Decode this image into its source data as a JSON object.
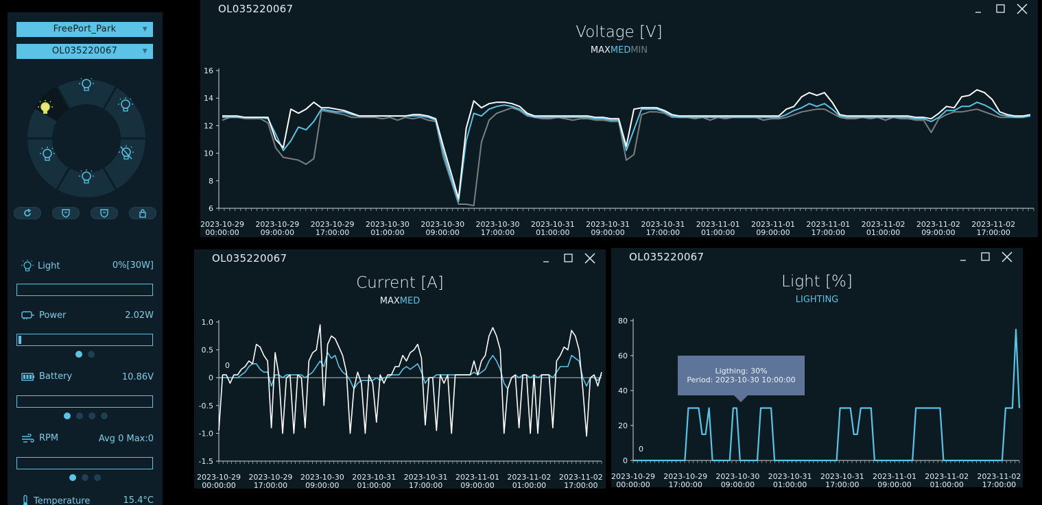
{
  "sidebar": {
    "site_select": "FreePort_Park",
    "device_select": "OL035220067",
    "metrics": {
      "light": {
        "label": "Light",
        "value": "0%[30W]",
        "level": 0
      },
      "power": {
        "label": "Power",
        "value": "2.02W",
        "level": 0.02
      },
      "battery": {
        "label": "Battery",
        "value": "10.86V",
        "level": 0
      },
      "rpm": {
        "label": "RPM",
        "value": "Avg 0 Max:0",
        "level": 0
      },
      "temperature": {
        "label": "Temperature",
        "value": "15.4°C"
      }
    },
    "pagers": {
      "power": [
        true,
        false
      ],
      "battery": [
        true,
        false,
        false,
        false
      ],
      "rpm": [
        true,
        false,
        false
      ]
    }
  },
  "panels": {
    "voltage": {
      "device": "OL035220067",
      "title": "Voltage [V]",
      "legend": {
        "max": "MAX",
        "med": "MED",
        "min": "MIN"
      }
    },
    "current": {
      "device": "OL035220067",
      "title": "Current [A]",
      "legend": {
        "max": "MAX",
        "med": "MED"
      }
    },
    "light": {
      "device": "OL035220067",
      "title": "Light [%]",
      "legend": {
        "lighting": "LIGHTING"
      },
      "tooltip": {
        "line1": "Ligthing: 30%",
        "line2": "Period: 2023-10-30 10:00:00"
      }
    }
  },
  "colors": {
    "max": "#ffffff",
    "med": "#5bc3e6",
    "min": "#7a7f82",
    "accent": "#5bc3e6"
  },
  "chart_data": [
    {
      "type": "line",
      "title": "Voltage [V]",
      "ylim": [
        6,
        16
      ],
      "yticks": [
        6,
        8,
        10,
        12,
        14,
        16
      ],
      "xticks": [
        [
          "2023-10-29",
          "00:00:00"
        ],
        [
          "2023-10-29",
          "09:00:00"
        ],
        [
          "2023-10-29",
          "17:00:00"
        ],
        [
          "2023-10-30",
          "01:00:00"
        ],
        [
          "2023-10-30",
          "09:00:00"
        ],
        [
          "2023-10-30",
          "17:00:00"
        ],
        [
          "2023-10-31",
          "01:00:00"
        ],
        [
          "2023-10-31",
          "09:00:00"
        ],
        [
          "2023-10-31",
          "17:00:00"
        ],
        [
          "2023-11-01",
          "01:00:00"
        ],
        [
          "2023-11-01",
          "09:00:00"
        ],
        [
          "2023-11-01",
          "17:00:00"
        ],
        [
          "2023-11-02",
          "01:00:00"
        ],
        [
          "2023-11-02",
          "09:00:00"
        ],
        [
          "2023-11-02",
          "17:00:00"
        ]
      ],
      "series": [
        {
          "name": "MAX",
          "values": [
            12.7,
            12.7,
            12.7,
            12.6,
            12.6,
            12.6,
            12.6,
            11.0,
            10.4,
            13.2,
            12.9,
            13.2,
            13.7,
            13.3,
            13.3,
            13.2,
            13.1,
            12.9,
            12.7,
            12.7,
            12.7,
            12.7,
            12.7,
            12.7,
            12.7,
            12.8,
            12.8,
            12.7,
            12.5,
            10.5,
            8.6,
            6.7,
            11.8,
            13.8,
            13.3,
            13.6,
            13.7,
            13.7,
            13.6,
            13.4,
            12.9,
            12.7,
            12.7,
            12.7,
            12.7,
            12.7,
            12.7,
            12.7,
            12.7,
            12.6,
            12.6,
            12.5,
            12.5,
            10.5,
            13.2,
            13.3,
            13.3,
            13.3,
            13.1,
            12.8,
            12.7,
            12.7,
            12.7,
            12.7,
            12.7,
            12.7,
            12.7,
            12.7,
            12.7,
            12.7,
            12.7,
            12.7,
            12.7,
            12.7,
            13.2,
            13.4,
            14.1,
            14.4,
            14.2,
            14.4,
            13.7,
            12.8,
            12.7,
            12.7,
            12.7,
            12.7,
            12.7,
            12.7,
            12.7,
            12.7,
            12.7,
            12.6,
            12.6,
            12.5,
            12.9,
            13.4,
            13.3,
            14.1,
            14.2,
            14.6,
            14.4,
            13.9,
            13.0,
            12.8,
            12.7,
            12.7,
            12.8
          ]
        },
        {
          "name": "MED",
          "values": [
            12.6,
            12.6,
            12.6,
            12.6,
            12.6,
            12.6,
            12.5,
            11.4,
            10.2,
            10.9,
            11.9,
            11.7,
            12.3,
            13.2,
            13.1,
            13.0,
            13.0,
            12.8,
            12.7,
            12.7,
            12.7,
            12.7,
            12.7,
            12.7,
            12.7,
            12.7,
            12.7,
            12.6,
            12.4,
            10.1,
            8.2,
            6.5,
            10.9,
            12.9,
            12.7,
            13.2,
            13.4,
            13.5,
            13.4,
            13.2,
            12.8,
            12.6,
            12.6,
            12.6,
            12.6,
            12.6,
            12.6,
            12.6,
            12.6,
            12.5,
            12.5,
            12.4,
            12.4,
            10.2,
            11.7,
            13.2,
            13.2,
            13.2,
            13.0,
            12.7,
            12.6,
            12.6,
            12.6,
            12.6,
            12.6,
            12.6,
            12.6,
            12.6,
            12.6,
            12.6,
            12.6,
            12.6,
            12.6,
            12.6,
            12.8,
            13.1,
            13.3,
            13.6,
            13.4,
            13.6,
            13.2,
            12.7,
            12.6,
            12.6,
            12.6,
            12.6,
            12.6,
            12.6,
            12.6,
            12.6,
            12.6,
            12.5,
            12.5,
            12.3,
            12.6,
            13.1,
            13.1,
            13.4,
            13.4,
            13.7,
            13.5,
            13.2,
            12.8,
            12.7,
            12.6,
            12.6,
            12.7
          ]
        },
        {
          "name": "MIN",
          "values": [
            12.4,
            12.6,
            12.6,
            12.5,
            12.5,
            12.5,
            12.2,
            10.4,
            9.7,
            9.6,
            9.5,
            9.2,
            9.6,
            13.1,
            13.0,
            12.9,
            12.8,
            12.6,
            12.6,
            12.6,
            12.6,
            12.5,
            12.6,
            12.4,
            12.6,
            12.5,
            12.6,
            12.4,
            12.3,
            9.7,
            8.0,
            6.3,
            6.3,
            6.2,
            10.8,
            12.4,
            12.9,
            13.1,
            13.3,
            13.1,
            12.7,
            12.6,
            12.5,
            12.5,
            12.6,
            12.5,
            12.4,
            12.5,
            12.5,
            12.4,
            12.4,
            12.3,
            12.3,
            9.5,
            9.9,
            12.8,
            13.0,
            13.0,
            12.9,
            12.6,
            12.6,
            12.6,
            12.5,
            12.6,
            12.4,
            12.6,
            12.5,
            12.6,
            12.6,
            12.6,
            12.6,
            12.4,
            12.5,
            12.5,
            12.6,
            12.8,
            13.0,
            13.1,
            13.2,
            13.2,
            12.9,
            12.6,
            12.5,
            12.5,
            12.6,
            12.5,
            12.6,
            12.4,
            12.6,
            12.5,
            12.5,
            12.4,
            12.4,
            11.5,
            12.5,
            12.8,
            13.0,
            13.0,
            13.1,
            13.2,
            13.0,
            12.8,
            12.6,
            12.6,
            12.6,
            12.6,
            12.7
          ]
        }
      ]
    },
    {
      "type": "line",
      "title": "Current [A]",
      "ylim": [
        -1.5,
        1.0
      ],
      "yticks": [
        -1.5,
        -1.0,
        -0.5,
        0,
        0.5,
        1.0
      ],
      "ytick_labels": [
        "-1.5",
        "-1.0",
        "-0.5",
        "0",
        "0.5",
        "1.0"
      ],
      "annotation": "0",
      "xticks": [
        [
          "2023-10-29",
          "00:00:00"
        ],
        [
          "2023-10-29",
          "17:00:00"
        ],
        [
          "2023-10-30",
          "09:00:00"
        ],
        [
          "2023-10-31",
          "01:00:00"
        ],
        [
          "2023-10-31",
          "17:00:00"
        ],
        [
          "2023-11-01",
          "09:00:00"
        ],
        [
          "2023-11-02",
          "01:00:00"
        ],
        [
          "2023-11-02",
          "17:00:00"
        ]
      ],
      "series": [
        {
          "name": "MAX",
          "values": [
            -0.95,
            0.05,
            0.05,
            -0.1,
            0.05,
            0.05,
            0.15,
            0.2,
            0.3,
            0.25,
            0.6,
            0.55,
            0.4,
            0.3,
            -0.9,
            0.45,
            0.05,
            -1.0,
            0.0,
            0.05,
            -1.0,
            0.05,
            0.0,
            -0.9,
            0.3,
            0.45,
            0.5,
            0.95,
            -0.5,
            0.6,
            0.75,
            0.7,
            0.55,
            0.4,
            0.1,
            -1.0,
            -0.2,
            0.1,
            -0.1,
            -1.0,
            0.05,
            -0.1,
            -0.8,
            0.05,
            -0.1,
            0.05,
            0.05,
            0.2,
            0.2,
            0.4,
            0.3,
            0.45,
            0.5,
            0.6,
            0.35,
            -0.85,
            0.0,
            0.0,
            -0.95,
            0.05,
            -0.1,
            0.05,
            -1.0,
            0.05,
            0.05,
            0.05,
            0.05,
            0.05,
            0.3,
            0.05,
            0.3,
            0.4,
            0.75,
            0.9,
            0.75,
            0.5,
            -1.0,
            -0.2,
            0.0,
            0.05,
            -0.9,
            0.05,
            0.05,
            -1.0,
            0.05,
            -1.0,
            0.05,
            0.05,
            0.05,
            -0.9,
            0.3,
            0.4,
            0.55,
            0.5,
            0.85,
            0.75,
            0.5,
            -0.2,
            -1.05,
            0.0,
            0.05,
            -0.15,
            0.1
          ]
        },
        {
          "name": "MED",
          "values": [
            0.0,
            0.0,
            0.0,
            0.0,
            0.0,
            0.0,
            0.05,
            0.1,
            0.2,
            0.25,
            0.25,
            0.15,
            0.1,
            0.1,
            -0.15,
            0.05,
            0.05,
            0.0,
            0.05,
            0.05,
            0.05,
            0.05,
            0.05,
            0.0,
            0.05,
            0.1,
            0.2,
            0.3,
            0.2,
            0.45,
            0.35,
            0.4,
            0.2,
            0.1,
            0.05,
            -0.05,
            -0.2,
            -0.1,
            -0.05,
            -0.05,
            -0.05,
            -0.05,
            0.0,
            -0.05,
            0.0,
            0.0,
            0.05,
            0.05,
            0.05,
            0.15,
            0.2,
            0.15,
            0.2,
            0.25,
            0.1,
            -0.1,
            0.0,
            0.0,
            0.05,
            0.05,
            0.05,
            0.05,
            0.05,
            0.05,
            0.05,
            0.05,
            0.05,
            0.05,
            0.1,
            0.05,
            0.1,
            0.15,
            0.3,
            0.4,
            0.3,
            0.15,
            -0.1,
            -0.2,
            0.0,
            0.05,
            0.0,
            0.05,
            0.05,
            0.0,
            0.05,
            0.0,
            0.05,
            0.05,
            0.05,
            0.0,
            0.1,
            0.2,
            0.2,
            0.2,
            0.4,
            0.35,
            0.3,
            0.0,
            -0.15,
            0.0,
            0.0,
            -0.05,
            0.05
          ]
        }
      ]
    },
    {
      "type": "line",
      "title": "Light [%]",
      "ylim": [
        0,
        80
      ],
      "yticks": [
        0,
        20,
        40,
        60,
        80
      ],
      "annotation": "0",
      "xticks": [
        [
          "2023-10-29",
          "00:00:00"
        ],
        [
          "2023-10-29",
          "17:00:00"
        ],
        [
          "2023-10-30",
          "09:00:00"
        ],
        [
          "2023-10-31",
          "01:00:00"
        ],
        [
          "2023-10-31",
          "17:00:00"
        ],
        [
          "2023-11-01",
          "09:00:00"
        ],
        [
          "2023-11-02",
          "01:00:00"
        ],
        [
          "2023-11-02",
          "17:00:00"
        ]
      ],
      "series": [
        {
          "name": "LIGHTING",
          "values": [
            0,
            0,
            0,
            0,
            0,
            0,
            0,
            0,
            0,
            0,
            0,
            0,
            0,
            0,
            0,
            0,
            30,
            30,
            30,
            30,
            15,
            15,
            30,
            0,
            0,
            0,
            0,
            0,
            0,
            30,
            30,
            0,
            0,
            0,
            0,
            0,
            0,
            30,
            30,
            30,
            30,
            0,
            0,
            0,
            0,
            0,
            0,
            0,
            0,
            0,
            0,
            0,
            0,
            0,
            0,
            0,
            0,
            0,
            0,
            0,
            30,
            30,
            30,
            30,
            15,
            15,
            30,
            30,
            30,
            30,
            0,
            0,
            0,
            0,
            0,
            0,
            0,
            0,
            0,
            0,
            0,
            0,
            30,
            30,
            30,
            30,
            30,
            30,
            30,
            30,
            0,
            0,
            0,
            0,
            0,
            0,
            0,
            0,
            0,
            0,
            0,
            0,
            0,
            0,
            0,
            0,
            0,
            0,
            30,
            30,
            30,
            75,
            30
          ]
        }
      ]
    }
  ]
}
